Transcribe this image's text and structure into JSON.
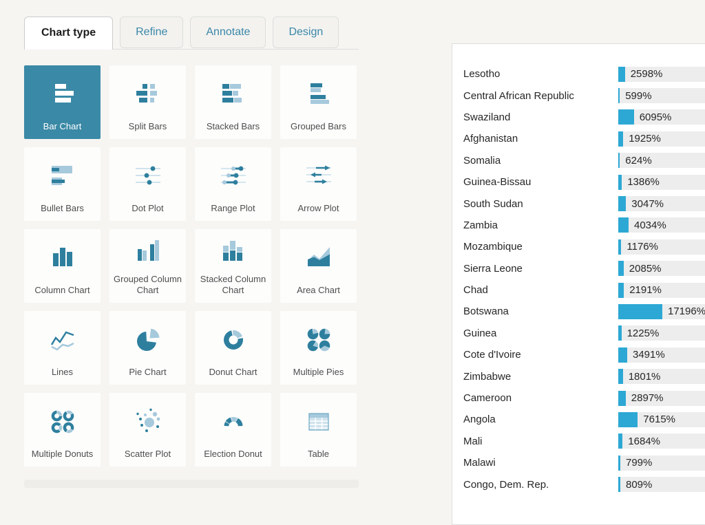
{
  "tabs": [
    {
      "label": "Chart type",
      "active": true
    },
    {
      "label": "Refine",
      "active": false
    },
    {
      "label": "Annotate",
      "active": false
    },
    {
      "label": "Design",
      "active": false
    }
  ],
  "chart_types": [
    {
      "label": "Bar Chart",
      "icon": "bar-chart-icon",
      "selected": true
    },
    {
      "label": "Split Bars",
      "icon": "split-bars-icon",
      "selected": false
    },
    {
      "label": "Stacked Bars",
      "icon": "stacked-bars-icon",
      "selected": false
    },
    {
      "label": "Grouped Bars",
      "icon": "grouped-bars-icon",
      "selected": false
    },
    {
      "label": "Bullet Bars",
      "icon": "bullet-bars-icon",
      "selected": false
    },
    {
      "label": "Dot Plot",
      "icon": "dot-plot-icon",
      "selected": false
    },
    {
      "label": "Range Plot",
      "icon": "range-plot-icon",
      "selected": false
    },
    {
      "label": "Arrow Plot",
      "icon": "arrow-plot-icon",
      "selected": false
    },
    {
      "label": "Column Chart",
      "icon": "column-chart-icon",
      "selected": false
    },
    {
      "label": "Grouped Column Chart",
      "icon": "grouped-column-chart-icon",
      "selected": false
    },
    {
      "label": "Stacked Column Chart",
      "icon": "stacked-column-chart-icon",
      "selected": false
    },
    {
      "label": "Area Chart",
      "icon": "area-chart-icon",
      "selected": false
    },
    {
      "label": "Lines",
      "icon": "lines-icon",
      "selected": false
    },
    {
      "label": "Pie Chart",
      "icon": "pie-chart-icon",
      "selected": false
    },
    {
      "label": "Donut Chart",
      "icon": "donut-chart-icon",
      "selected": false
    },
    {
      "label": "Multiple Pies",
      "icon": "multiple-pies-icon",
      "selected": false
    },
    {
      "label": "Multiple Donuts",
      "icon": "multiple-donuts-icon",
      "selected": false
    },
    {
      "label": "Scatter Plot",
      "icon": "scatter-plot-icon",
      "selected": false
    },
    {
      "label": "Election Donut",
      "icon": "election-donut-icon",
      "selected": false
    },
    {
      "label": "Table",
      "icon": "table-icon",
      "selected": false
    }
  ],
  "colors": {
    "accent": "#3a89a6",
    "tab_link": "#3a87a8",
    "bar_fill": "#2da8d4",
    "icon_dark": "#2e7f9e",
    "icon_light": "#a6c9dc",
    "icon_pale": "#cfe2ec",
    "icon_mid": "#6ca7c4"
  },
  "chart_data": {
    "type": "bar",
    "orientation": "horizontal",
    "unit": "%",
    "categories": [
      "Lesotho",
      "Central African Republic",
      "Swaziland",
      "Afghanistan",
      "Somalia",
      "Guinea-Bissau",
      "South Sudan",
      "Zambia",
      "Mozambique",
      "Sierra Leone",
      "Chad",
      "Botswana",
      "Guinea",
      "Cote d'Ivoire",
      "Zimbabwe",
      "Cameroon",
      "Angola",
      "Mali",
      "Malawi",
      "Congo, Dem. Rep."
    ],
    "values": [
      2598,
      599,
      6095,
      1925,
      624,
      1386,
      3047,
      4034,
      1176,
      2085,
      2191,
      17196,
      1225,
      3491,
      1801,
      2897,
      7615,
      1684,
      799,
      809
    ],
    "value_labels": [
      "2598%",
      "599%",
      "6095%",
      "1925%",
      "624%",
      "1386%",
      "3047%",
      "4034%",
      "1176%",
      "2085%",
      "2191%",
      "17196%",
      "1225%",
      "3491%",
      "1801%",
      "2897%",
      "7615%",
      "1684%",
      "799%",
      "809%"
    ],
    "xlim": [
      0,
      17196
    ],
    "grid": false,
    "legend": "none",
    "bar_color": "#2da8d4"
  }
}
